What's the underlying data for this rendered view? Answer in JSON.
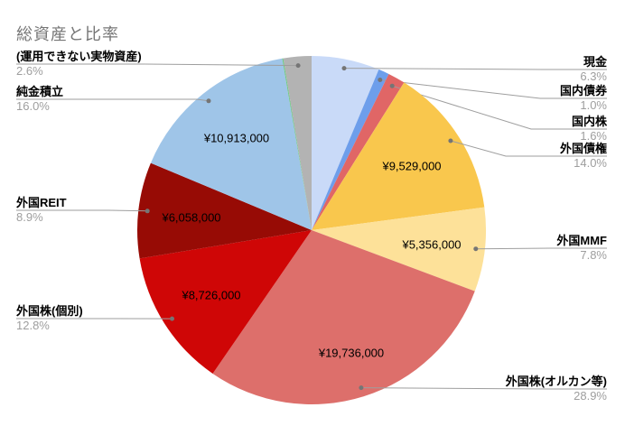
{
  "chart_title": "総資産と比率",
  "chart_data": {
    "type": "pie",
    "title": "総資産と比率",
    "legend_position": "outside-callout-labels",
    "grid": false,
    "slices": [
      {
        "label": "現金",
        "pct": 6.3,
        "pct_label": "6.3%",
        "color": "#c9daf8"
      },
      {
        "label": "国内債券",
        "pct": 1.0,
        "pct_label": "1.0%",
        "color": "#6d9eeb"
      },
      {
        "label": "国内株",
        "pct": 1.6,
        "pct_label": "1.6%",
        "color": "#e06666"
      },
      {
        "label": "外国債権",
        "pct": 14.0,
        "pct_label": "14.0%",
        "color": "#f9c74d",
        "value_label": "¥9,529,000"
      },
      {
        "label": "外国MMF",
        "pct": 7.8,
        "pct_label": "7.8%",
        "color": "#fde199",
        "value_label": "¥5,356,000"
      },
      {
        "label": "外国株(オルカン等)",
        "pct": 28.9,
        "pct_label": "28.9%",
        "color": "#dd6f6b",
        "value_label": "¥19,736,000"
      },
      {
        "label": "外国株(個別)",
        "pct": 12.8,
        "pct_label": "12.8%",
        "color": "#cf0606",
        "value_label": "¥8,726,000"
      },
      {
        "label": "外国REIT",
        "pct": 8.9,
        "pct_label": "8.9%",
        "color": "#970b05",
        "value_label": "¥6,058,000"
      },
      {
        "label": "純金積立",
        "pct": 16.0,
        "pct_label": "16.0%",
        "color": "#9fc5e8",
        "value_label": "¥10,913,000"
      },
      {
        "label": "",
        "pct": 0.1,
        "pct_label": "",
        "color": "#6dc981"
      },
      {
        "label": "(運用できない実物資産)",
        "pct": 2.6,
        "pct_label": "2.6%",
        "color": "#b3b3b3"
      }
    ],
    "colors": {
      "title_text": "#757575",
      "label_text": "#000000",
      "percent_text": "#9e9e9e",
      "leader_line": "#9e9e9e",
      "leader_dot": "#757575",
      "background": "#ffffff"
    }
  }
}
